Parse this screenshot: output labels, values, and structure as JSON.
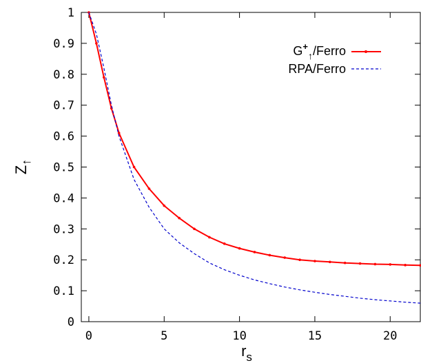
{
  "chart_data": {
    "type": "line",
    "title": "",
    "xlabel": "r",
    "xlabel_sub": "s",
    "ylabel": "Z",
    "ylabel_sub": "↑",
    "xlim": [
      -0.5,
      22
    ],
    "ylim": [
      0,
      1
    ],
    "xticks": [
      0,
      5,
      10,
      15,
      20
    ],
    "xtick_labels": [
      "0",
      "5",
      "10",
      "15",
      "20"
    ],
    "yticks": [
      0,
      0.1,
      0.2,
      0.3,
      0.4,
      0.5,
      0.6,
      0.7,
      0.8,
      0.9,
      1
    ],
    "ytick_labels": [
      "0",
      "0.1",
      "0.2",
      "0.3",
      "0.4",
      "0.5",
      "0.6",
      "0.7",
      "0.8",
      "0.9",
      "1"
    ],
    "grid": false,
    "legend_position": "top-right",
    "series": [
      {
        "name": "G⁺↑/Ferro",
        "legend_base": "G",
        "legend_sup": "+",
        "legend_sub": "↑",
        "legend_rest": "/Ferro",
        "color": "#ff0000",
        "style": "solid-with-points",
        "x": [
          0,
          0.5,
          1,
          1.5,
          2,
          3,
          4,
          5,
          6,
          7,
          8,
          9,
          10,
          11,
          12,
          13,
          14,
          15,
          16,
          17,
          18,
          19,
          20,
          21,
          22
        ],
        "y": [
          1.0,
          0.9,
          0.79,
          0.69,
          0.61,
          0.5,
          0.43,
          0.375,
          0.335,
          0.3,
          0.273,
          0.252,
          0.237,
          0.225,
          0.215,
          0.207,
          0.2,
          0.196,
          0.193,
          0.19,
          0.188,
          0.186,
          0.185,
          0.183,
          0.182
        ]
      },
      {
        "name": "RPA/Ferro",
        "color": "#0000cc",
        "style": "dashed",
        "x": [
          0,
          0.5,
          1,
          1.5,
          2,
          3,
          4,
          5,
          6,
          7,
          8,
          9,
          10,
          11,
          12,
          13,
          14,
          15,
          16,
          17,
          18,
          19,
          20,
          21,
          22
        ],
        "y": [
          1.0,
          0.93,
          0.82,
          0.7,
          0.6,
          0.46,
          0.37,
          0.3,
          0.255,
          0.22,
          0.19,
          0.168,
          0.15,
          0.135,
          0.123,
          0.112,
          0.103,
          0.095,
          0.088,
          0.082,
          0.076,
          0.071,
          0.067,
          0.063,
          0.06
        ]
      }
    ]
  }
}
